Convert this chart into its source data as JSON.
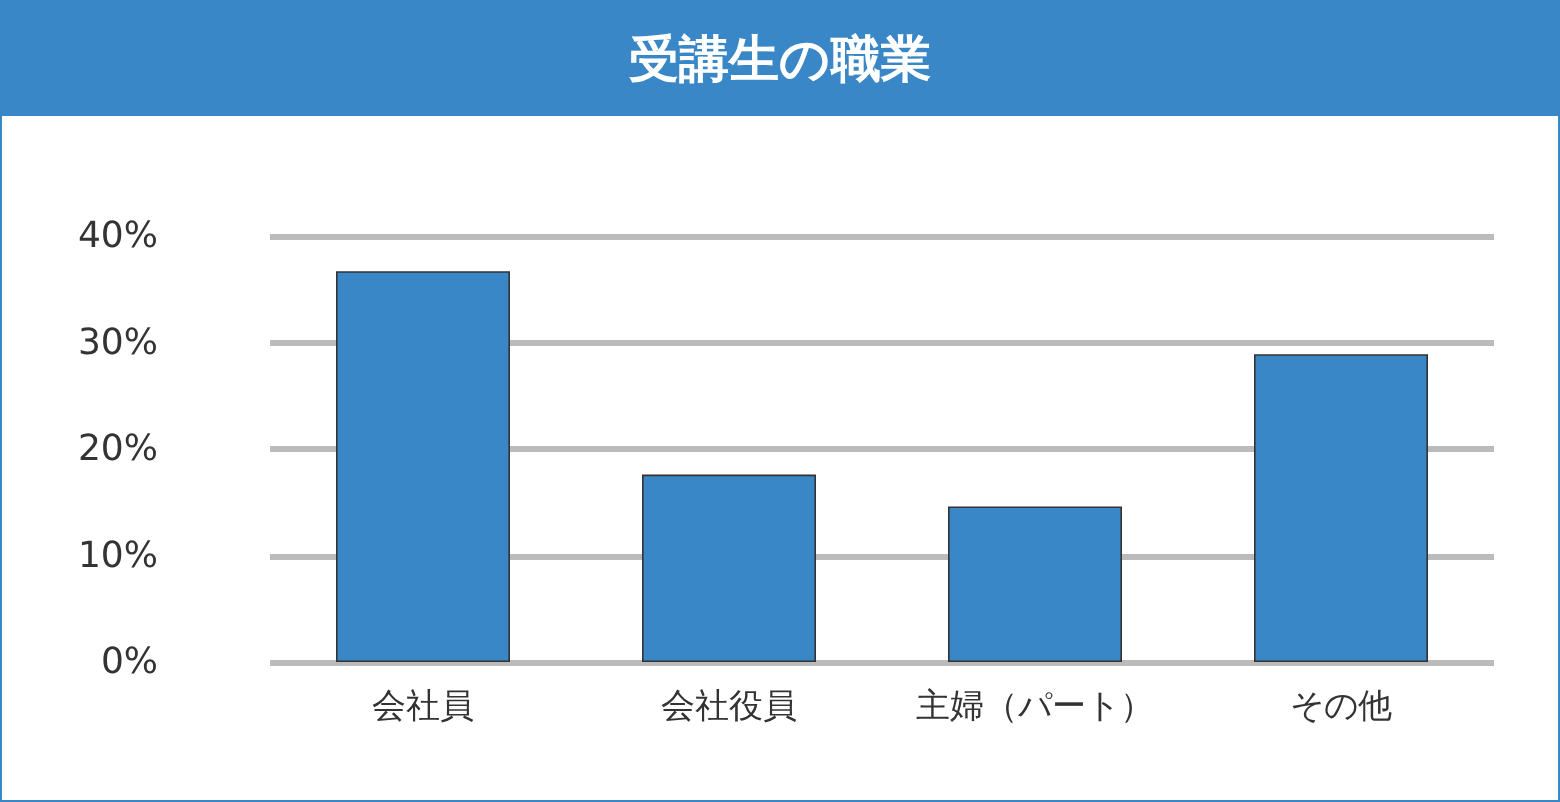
{
  "chart_data": {
    "type": "bar",
    "title": "受講生の職業",
    "categories": [
      "会社員",
      "会社役員",
      "主婦（パート）",
      "その他"
    ],
    "values": [
      36.7,
      17.6,
      14.6,
      28.9
    ],
    "color": "#3a87c8",
    "ylim": [
      0,
      40
    ],
    "yticks": [
      {
        "value": 0,
        "label": "0%"
      },
      {
        "value": 10,
        "label": "10%"
      },
      {
        "value": 20,
        "label": "20%"
      },
      {
        "value": 30,
        "label": "30%"
      },
      {
        "value": 40,
        "label": "40%"
      }
    ],
    "grid": "y"
  }
}
